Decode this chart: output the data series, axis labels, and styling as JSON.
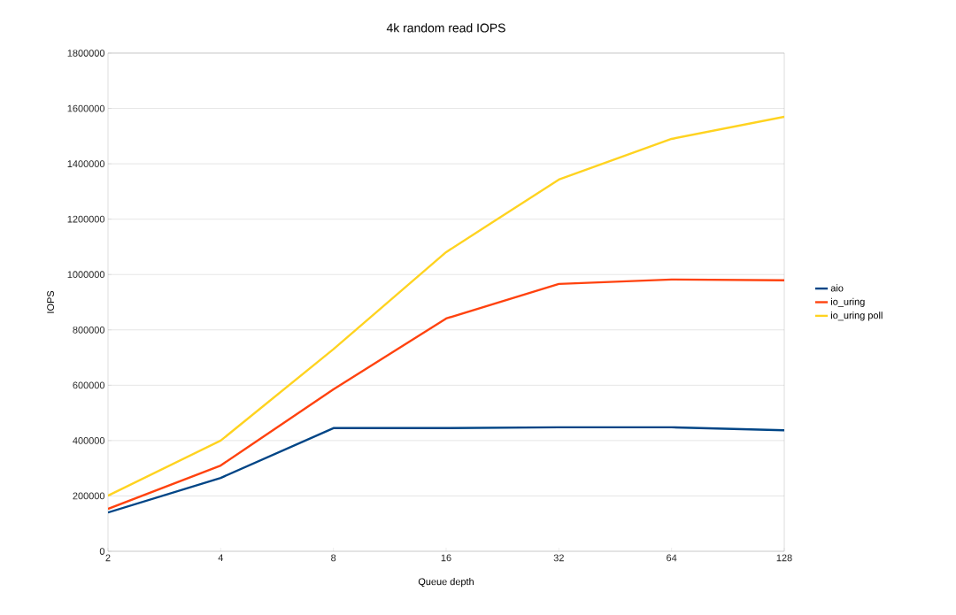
{
  "chart_data": {
    "type": "line",
    "title": "4k random read IOPS",
    "xlabel": "Queue depth",
    "ylabel": "IOPS",
    "categories": [
      "2",
      "4",
      "8",
      "16",
      "32",
      "64",
      "128"
    ],
    "series": [
      {
        "name": "aio",
        "color": "#004586",
        "values": [
          140000,
          265000,
          445000,
          445000,
          448000,
          448000,
          437000
        ]
      },
      {
        "name": "io_uring",
        "color": "#ff420e",
        "values": [
          153000,
          310000,
          585000,
          841000,
          966000,
          982000,
          979000
        ]
      },
      {
        "name": "io_uring poll",
        "color": "#ffd320",
        "values": [
          201000,
          400000,
          730000,
          1081000,
          1343000,
          1490000,
          1570000
        ]
      }
    ],
    "ylim": [
      0,
      1800000
    ],
    "yticks": [
      0,
      200000,
      400000,
      600000,
      800000,
      1000000,
      1200000,
      1400000,
      1600000,
      1800000
    ],
    "grid": "y",
    "legend": "right",
    "marker": "none",
    "line_style": "solid"
  }
}
